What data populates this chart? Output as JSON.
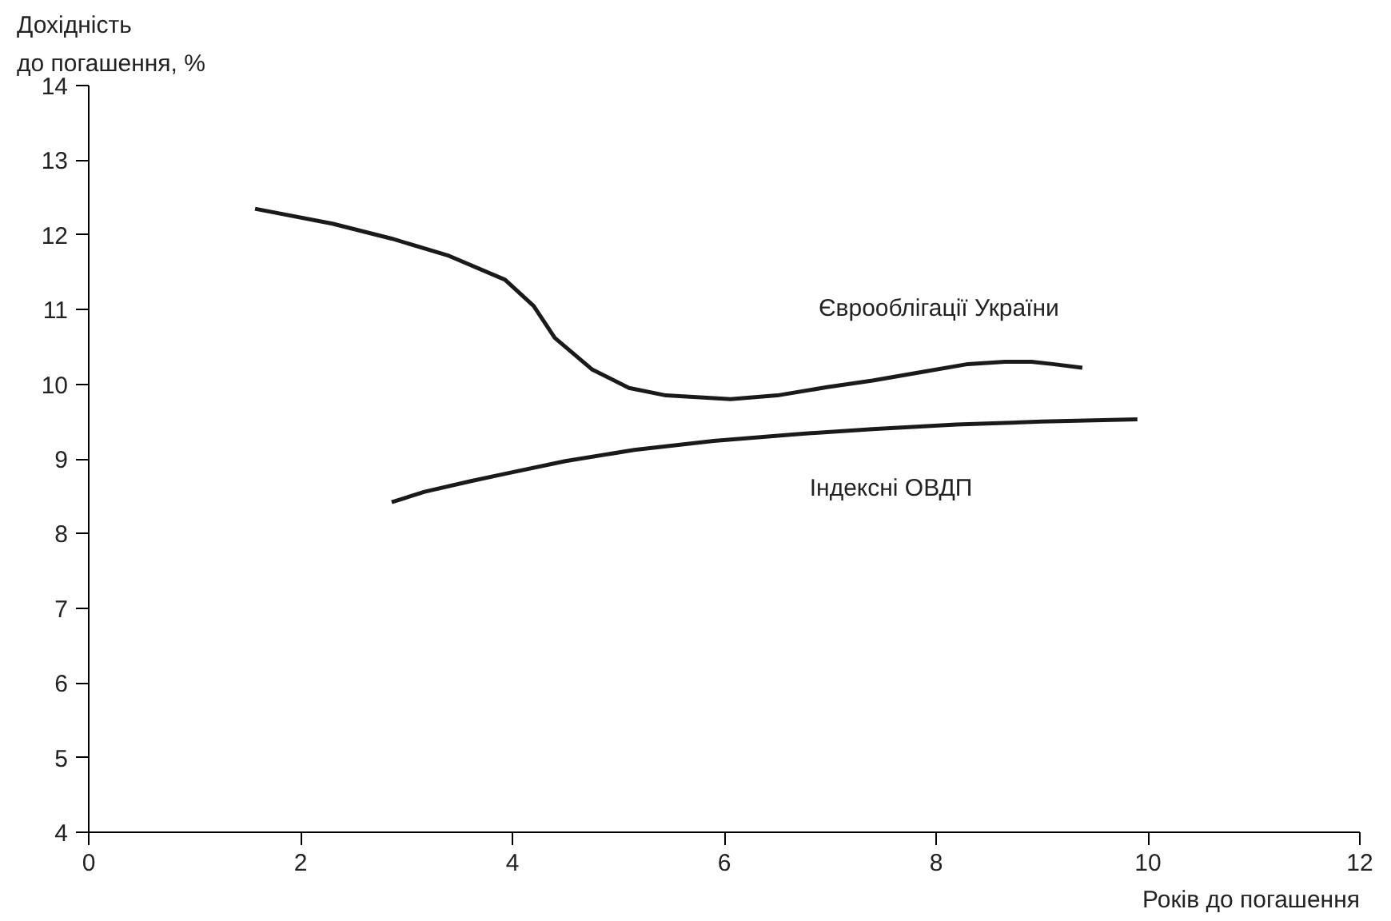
{
  "chart_data": {
    "type": "line",
    "xlabel": "Років до погашення",
    "ylabel": "Дохідність\nдо погашення, %",
    "xlim": [
      0,
      12
    ],
    "xticks": [
      0,
      2,
      4,
      6,
      8,
      10,
      12
    ],
    "ylim": [
      4,
      14
    ],
    "yticks": [
      4,
      5,
      6,
      7,
      8,
      9,
      10,
      11,
      12,
      13,
      14
    ],
    "grid": false,
    "legend": false,
    "marker": "none",
    "line_style": "solid",
    "series": [
      {
        "name": "Єврооблігації України",
        "color": "#1a1a1a",
        "x": [
          1.57,
          2.3,
          2.86,
          3.4,
          3.93,
          4.2,
          4.4,
          4.75,
          5.1,
          5.45,
          6.06,
          6.5,
          6.97,
          7.4,
          7.89,
          8.3,
          8.65,
          8.9,
          9.1,
          9.38
        ],
        "values": [
          12.35,
          12.15,
          11.95,
          11.72,
          11.4,
          11.05,
          10.62,
          10.2,
          9.95,
          9.85,
          9.8,
          9.85,
          9.96,
          10.05,
          10.17,
          10.27,
          10.3,
          10.3,
          10.27,
          10.22
        ]
      },
      {
        "name": "Індексні ОВДП",
        "color": "#1a1a1a",
        "x": [
          2.86,
          3.17,
          3.6,
          3.93,
          4.5,
          5.15,
          5.9,
          6.67,
          7.4,
          8.19,
          9.0,
          9.9
        ],
        "values": [
          8.42,
          8.56,
          8.7,
          8.8,
          8.97,
          9.12,
          9.24,
          9.33,
          9.4,
          9.46,
          9.5,
          9.53
        ]
      }
    ]
  }
}
